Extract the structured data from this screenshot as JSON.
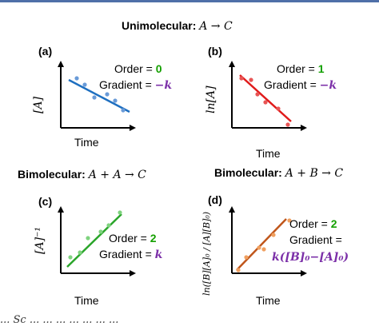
{
  "header_titles": {
    "unimolecular": {
      "label": "Unimolecular:",
      "eq": "A → C"
    },
    "bimolecular_aa": {
      "label": "Bimolecular:",
      "eq": "A + A → C"
    },
    "bimolecular_ab": {
      "label": "Bimolecular:",
      "eq": "A + B → C"
    }
  },
  "panels": [
    {
      "id": "a",
      "label": "(a)",
      "ylabel": "[A]",
      "xlabel": "Time",
      "order_text": "Order =",
      "order_value": "0",
      "gradient_text": "Gradient =",
      "gradient_value": "−k",
      "line_color": "#1e6fc0",
      "dot_color": "#6a9bd8"
    },
    {
      "id": "b",
      "label": "(b)",
      "ylabel": "ln[A]",
      "xlabel": "Time",
      "order_text": "Order =",
      "order_value": "1",
      "gradient_text": "Gradient =",
      "gradient_value": "−k",
      "line_color": "#e01b1b",
      "dot_color": "#e85555"
    },
    {
      "id": "c",
      "label": "(c)",
      "ylabel": "[A]⁻¹",
      "xlabel": "Time",
      "order_text": "Order =",
      "order_value": "2",
      "gradient_text": "Gradient =",
      "gradient_value": "k",
      "line_color": "#2aa52a",
      "dot_color": "#7fd37f"
    },
    {
      "id": "d",
      "label": "(d)",
      "ylabel": "ln([B][A]₀ / [A][B]₀)",
      "xlabel": "Time",
      "order_text": "Order =",
      "order_value": "2",
      "gradient_text": "Gradient =",
      "gradient_value": "k([B]₀−[A]₀)",
      "line_color": "#c0561b",
      "dot_color": "#f0a060"
    }
  ],
  "caption": "... Sc ... ... ... ... ... ... ..."
}
